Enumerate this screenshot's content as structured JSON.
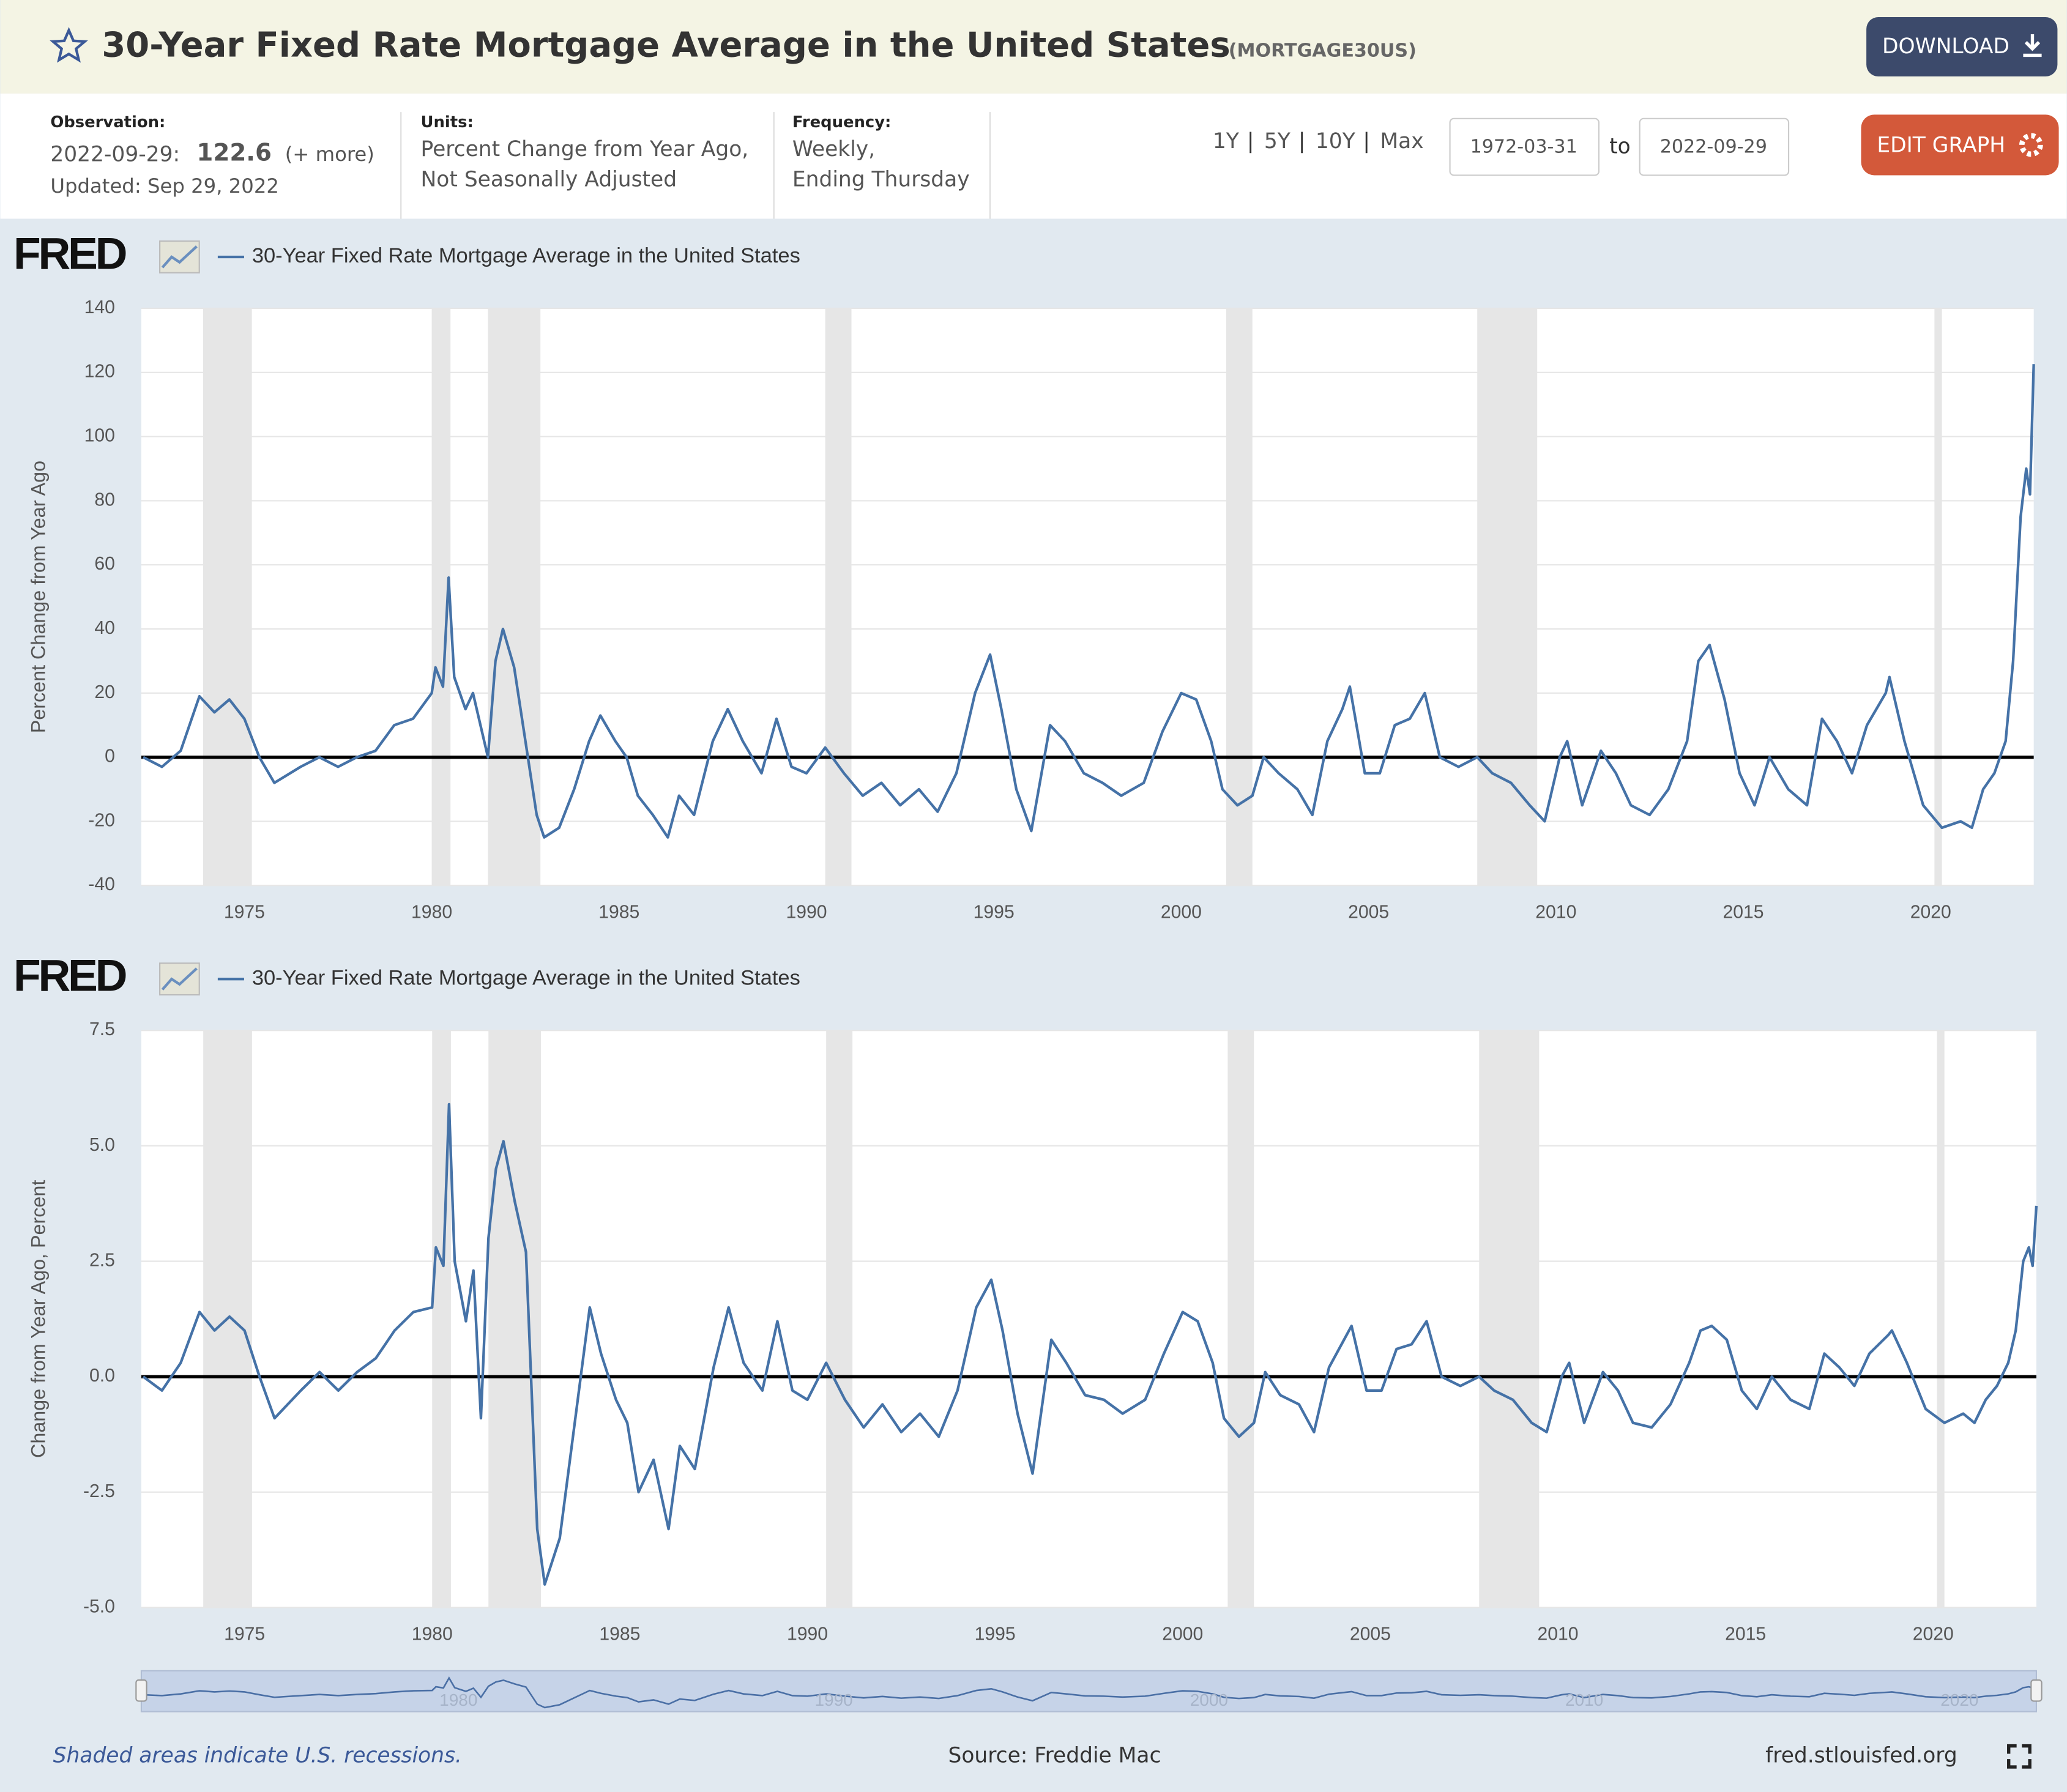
{
  "header": {
    "title": "30-Year Fixed Rate Mortgage Average in the United States",
    "series_id": "(MORTGAGE30US)",
    "download": "DOWNLOAD",
    "observation_label": "Observation:",
    "observation_date": "2022-09-29:",
    "observation_value": "122.6",
    "more": "(+ more)",
    "updated": "Updated: Sep 29, 2022",
    "units_label": "Units:",
    "units": [
      "Percent Change from Year Ago,",
      "Not Seasonally Adjusted"
    ],
    "frequency_label": "Frequency:",
    "frequency": [
      "Weekly,",
      "Ending Thursday"
    ],
    "ranges": [
      "1Y",
      "5Y",
      "10Y",
      "Max"
    ],
    "range_separator": "|",
    "start_date": "1972-03-31",
    "to": "to",
    "end_date": "2022-09-29",
    "edit_graph": "EDIT GRAPH"
  },
  "logo": "FRED",
  "chart_data": [
    {
      "type": "line",
      "y_label": "Percent Change from Year Ago",
      "x": [
        1972.3,
        1972.8,
        1973.3,
        1973.8,
        1974.2,
        1974.6,
        1975.0,
        1975.4,
        1975.8,
        1976.5,
        1977.0,
        1977.5,
        1978.0,
        1978.5,
        1979.0,
        1979.5,
        1980.0,
        1980.1,
        1980.3,
        1980.45,
        1980.6,
        1980.9,
        1981.1,
        1981.3,
        1981.5,
        1981.7,
        1981.9,
        1982.2,
        1982.5,
        1982.8,
        1983.0,
        1983.4,
        1983.8,
        1984.2,
        1984.5,
        1984.9,
        1985.2,
        1985.5,
        1985.9,
        1986.3,
        1986.6,
        1987.0,
        1987.5,
        1987.9,
        1988.3,
        1988.8,
        1989.2,
        1989.6,
        1990.0,
        1990.5,
        1991.0,
        1991.5,
        1992.0,
        1992.5,
        1993.0,
        1993.5,
        1994.0,
        1994.5,
        1994.9,
        1995.2,
        1995.6,
        1996.0,
        1996.5,
        1996.9,
        1997.4,
        1997.9,
        1998.4,
        1999.0,
        1999.5,
        2000.0,
        2000.4,
        2000.8,
        2001.1,
        2001.5,
        2001.9,
        2002.2,
        2002.6,
        2003.1,
        2003.5,
        2003.9,
        2004.3,
        2004.5,
        2004.9,
        2005.3,
        2005.7,
        2006.1,
        2006.5,
        2006.9,
        2007.4,
        2007.9,
        2008.3,
        2008.8,
        2009.3,
        2009.7,
        2010.1,
        2010.3,
        2010.7,
        2011.2,
        2011.6,
        2012.0,
        2012.5,
        2013.0,
        2013.5,
        2013.8,
        2014.1,
        2014.5,
        2014.9,
        2015.3,
        2015.7,
        2016.2,
        2016.7,
        2017.1,
        2017.5,
        2017.9,
        2018.3,
        2018.8,
        2018.9,
        2019.3,
        2019.8,
        2020.3,
        2020.8,
        2021.1,
        2021.4,
        2021.7,
        2022.0,
        2022.2,
        2022.4,
        2022.55,
        2022.65,
        2022.75
      ],
      "series": [
        {
          "name": "30-Year Fixed Rate Mortgage Average in the United States",
          "color": "#4572a7",
          "values": [
            0,
            -3,
            2,
            19,
            14,
            18,
            12,
            0,
            -8,
            -3,
            0,
            -3,
            0,
            2,
            10,
            12,
            20,
            28,
            22,
            56,
            25,
            15,
            20,
            10,
            0,
            30,
            40,
            28,
            5,
            -18,
            -25,
            -22,
            -10,
            5,
            13,
            5,
            0,
            -12,
            -18,
            -25,
            -12,
            -18,
            5,
            15,
            5,
            -5,
            12,
            -3,
            -5,
            3,
            -5,
            -12,
            -8,
            -15,
            -10,
            -17,
            -5,
            20,
            32,
            15,
            -10,
            -23,
            10,
            5,
            -5,
            -8,
            -12,
            -8,
            8,
            20,
            18,
            5,
            -10,
            -15,
            -12,
            0,
            -5,
            -10,
            -18,
            5,
            15,
            22,
            -5,
            -5,
            10,
            12,
            20,
            0,
            -3,
            0,
            -5,
            -8,
            -15,
            -20,
            0,
            5,
            -15,
            2,
            -5,
            -15,
            -18,
            -10,
            5,
            30,
            35,
            18,
            -5,
            -15,
            0,
            -10,
            -15,
            12,
            5,
            -5,
            10,
            20,
            25,
            5,
            -15,
            -22,
            -20,
            -22,
            -10,
            -5,
            5,
            30,
            75,
            90,
            82,
            122.6
          ]
        }
      ],
      "xlim": [
        1972.25,
        2022.75
      ],
      "xticks": [
        1975,
        1980,
        1985,
        1990,
        1995,
        2000,
        2005,
        2010,
        2015,
        2020
      ],
      "ylim": [
        -40,
        140
      ],
      "yticks": [
        -40,
        -20,
        0,
        20,
        40,
        60,
        80,
        100,
        120,
        140
      ],
      "grid": true,
      "zero_line": true,
      "recessions": [
        {
          "start": 1973.9,
          "end": 1975.2
        },
        {
          "start": 1980.0,
          "end": 1980.5
        },
        {
          "start": 1981.5,
          "end": 1982.9
        },
        {
          "start": 1990.5,
          "end": 1991.2
        },
        {
          "start": 2001.2,
          "end": 2001.9
        },
        {
          "start": 2007.9,
          "end": 2009.5
        },
        {
          "start": 2020.1,
          "end": 2020.3
        }
      ]
    },
    {
      "type": "line",
      "y_label": "Change from Year Ago, Percent",
      "x": [
        1972.3,
        1972.8,
        1973.3,
        1973.8,
        1974.2,
        1974.6,
        1975.0,
        1975.4,
        1975.8,
        1976.5,
        1977.0,
        1977.5,
        1978.0,
        1978.5,
        1979.0,
        1979.5,
        1980.0,
        1980.1,
        1980.3,
        1980.45,
        1980.6,
        1980.9,
        1981.1,
        1981.3,
        1981.5,
        1981.7,
        1981.9,
        1982.2,
        1982.5,
        1982.8,
        1983.0,
        1983.4,
        1983.8,
        1984.2,
        1984.5,
        1984.9,
        1985.2,
        1985.5,
        1985.9,
        1986.3,
        1986.6,
        1987.0,
        1987.5,
        1987.9,
        1988.3,
        1988.8,
        1989.2,
        1989.6,
        1990.0,
        1990.5,
        1991.0,
        1991.5,
        1992.0,
        1992.5,
        1993.0,
        1993.5,
        1994.0,
        1994.5,
        1994.9,
        1995.2,
        1995.6,
        1996.0,
        1996.5,
        1996.9,
        1997.4,
        1997.9,
        1998.4,
        1999.0,
        1999.5,
        2000.0,
        2000.4,
        2000.8,
        2001.1,
        2001.5,
        2001.9,
        2002.2,
        2002.6,
        2003.1,
        2003.5,
        2003.9,
        2004.3,
        2004.5,
        2004.9,
        2005.3,
        2005.7,
        2006.1,
        2006.5,
        2006.9,
        2007.4,
        2007.9,
        2008.3,
        2008.8,
        2009.3,
        2009.7,
        2010.1,
        2010.3,
        2010.7,
        2011.2,
        2011.6,
        2012.0,
        2012.5,
        2013.0,
        2013.5,
        2013.8,
        2014.1,
        2014.5,
        2014.9,
        2015.3,
        2015.7,
        2016.2,
        2016.7,
        2017.1,
        2017.5,
        2017.9,
        2018.3,
        2018.8,
        2018.9,
        2019.3,
        2019.8,
        2020.3,
        2020.8,
        2021.1,
        2021.4,
        2021.7,
        2022.0,
        2022.2,
        2022.4,
        2022.55,
        2022.65,
        2022.75
      ],
      "series": [
        {
          "name": "30-Year Fixed Rate Mortgage Average in the United States",
          "color": "#4572a7",
          "values": [
            0,
            -0.3,
            0.3,
            1.4,
            1.0,
            1.3,
            1.0,
            0,
            -0.9,
            -0.3,
            0.1,
            -0.3,
            0.1,
            0.4,
            1.0,
            1.4,
            1.5,
            2.8,
            2.4,
            5.9,
            2.5,
            1.2,
            2.3,
            -0.9,
            3.0,
            4.5,
            5.1,
            3.8,
            2.7,
            -3.3,
            -4.5,
            -3.5,
            -1.0,
            1.5,
            0.5,
            -0.5,
            -1.0,
            -2.5,
            -1.8,
            -3.3,
            -1.5,
            -2.0,
            0.2,
            1.5,
            0.3,
            -0.3,
            1.2,
            -0.3,
            -0.5,
            0.3,
            -0.5,
            -1.1,
            -0.6,
            -1.2,
            -0.8,
            -1.3,
            -0.3,
            1.5,
            2.1,
            1.0,
            -0.8,
            -2.1,
            0.8,
            0.3,
            -0.4,
            -0.5,
            -0.8,
            -0.5,
            0.5,
            1.4,
            1.2,
            0.3,
            -0.9,
            -1.3,
            -1.0,
            0.1,
            -0.4,
            -0.6,
            -1.2,
            0.2,
            0.8,
            1.1,
            -0.3,
            -0.3,
            0.6,
            0.7,
            1.2,
            0,
            -0.2,
            0,
            -0.3,
            -0.5,
            -1.0,
            -1.2,
            0,
            0.3,
            -1.0,
            0.1,
            -0.3,
            -1.0,
            -1.1,
            -0.6,
            0.3,
            1.0,
            1.1,
            0.8,
            -0.3,
            -0.7,
            0,
            -0.5,
            -0.7,
            0.5,
            0.2,
            -0.2,
            0.5,
            0.9,
            1.0,
            0.3,
            -0.7,
            -1.0,
            -0.8,
            -1.0,
            -0.5,
            -0.2,
            0.3,
            1.0,
            2.5,
            2.8,
            2.4,
            3.7
          ]
        }
      ],
      "xlim": [
        1972.25,
        2022.75
      ],
      "xticks": [
        1975,
        1980,
        1985,
        1990,
        1995,
        2000,
        2005,
        2010,
        2015,
        2020
      ],
      "ylim": [
        -5,
        7.5
      ],
      "yticks": [
        {
          "value": -5,
          "label": "-5.0"
        },
        -2.5,
        {
          "value": 0,
          "label": "0.0"
        },
        2.5,
        {
          "value": 5,
          "label": "5.0"
        },
        7.5
      ],
      "grid": true,
      "zero_line": true,
      "recessions": [
        {
          "start": 1973.9,
          "end": 1975.2
        },
        {
          "start": 1980.0,
          "end": 1980.5
        },
        {
          "start": 1981.5,
          "end": 1982.9
        },
        {
          "start": 1990.5,
          "end": 1991.2
        },
        {
          "start": 2001.2,
          "end": 2001.9
        },
        {
          "start": 2007.9,
          "end": 2009.5
        },
        {
          "start": 2020.1,
          "end": 2020.3
        }
      ]
    }
  ],
  "footer": {
    "note": "Shaded areas indicate U.S. recessions.",
    "source": "Source: Freddie Mac",
    "site": "fred.stlouisfed.org"
  }
}
